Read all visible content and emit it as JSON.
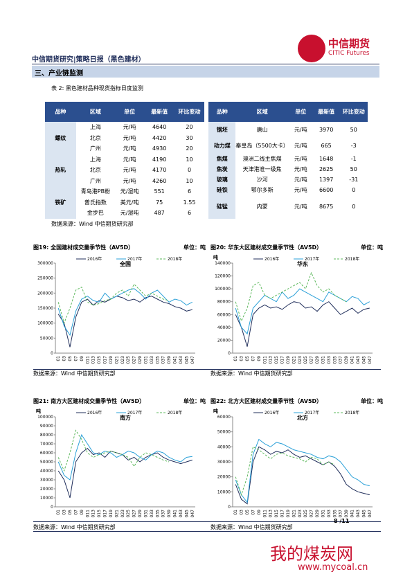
{
  "header": {
    "title": "中信期货研究|策略日报（黑色建材）",
    "logo_cn": "中信期货",
    "logo_en": "CITIC Futures"
  },
  "section": "三、产业链监测",
  "table": {
    "caption": "表 2: 黑色建材品种现货指标日度监测",
    "columns": [
      "品种",
      "区域",
      "单位",
      "最新值",
      "环比变动"
    ],
    "left": [
      {
        "product": "螺纹",
        "rows": [
          [
            "上海",
            "元/吨",
            4640,
            20
          ],
          [
            "北京",
            "元/吨",
            4420,
            30
          ],
          [
            "广州",
            "元/吨",
            4930,
            20
          ]
        ]
      },
      {
        "product": "热轧",
        "rows": [
          [
            "上海",
            "元/吨",
            4190,
            10
          ],
          [
            "北京",
            "元/吨",
            4170,
            0
          ],
          [
            "广州",
            "元/吨",
            4260,
            10
          ]
        ]
      },
      {
        "product": "铁矿",
        "rows": [
          [
            "青岛港PB粉",
            "元/湿吨",
            551,
            6
          ],
          [
            "普氏指数",
            "美元/吨",
            75,
            1.55
          ],
          [
            "金步巴",
            "元/湿吨",
            487,
            6
          ]
        ]
      }
    ],
    "right": [
      [
        "钢坯",
        "唐山",
        "元/吨",
        3970,
        50
      ],
      [
        "动力煤",
        "秦皇岛（5500大卡）",
        "元/吨",
        665,
        -3
      ],
      [
        "焦煤",
        "澳洲二线主焦煤",
        "元/吨",
        1648,
        -1
      ],
      [
        "焦炭",
        "天津港准一级焦",
        "元/吨",
        2625,
        50
      ],
      [
        "玻璃",
        "沙河",
        "元/吨",
        1397,
        -31
      ],
      [
        "硅铁",
        "鄂尔多斯",
        "元/吨",
        6600,
        0
      ],
      [
        "硅锰",
        "内蒙",
        "元/吨",
        8675,
        0
      ]
    ],
    "source": "数据来源：Wind 中信期货研究部"
  },
  "figures": [
    {
      "caption": "图19: 全国建材成交量季节性（AV5D）",
      "unit": "单位：吨",
      "source": "数据来源：Wind 中信期货研究部"
    },
    {
      "caption": "图20: 华东大区建材成交量季节性（AV5D）",
      "unit": "单位：吨",
      "source": "数据来源：Wind 中信期货研究部"
    },
    {
      "caption": "图21: 南方大区建材成交量季节性（AV5D）",
      "unit": "单位：吨",
      "source": "数据来源：Wind 中信期货研究部"
    },
    {
      "caption": "图22: 北方大区建材成交量季节性（AV5D）",
      "unit": "单位：吨",
      "source": "数据来源：Wind 中信期货研究部"
    }
  ],
  "chart_data": [
    {
      "type": "line",
      "title": "全国",
      "categories": [
        "01",
        "03",
        "05",
        "07",
        "09",
        "011",
        "013",
        "015",
        "017",
        "019",
        "021",
        "023",
        "025",
        "027",
        "029",
        "031",
        "033",
        "035",
        "037",
        "039",
        "041",
        "043",
        "045",
        "047"
      ],
      "ylim": [
        0,
        300000
      ],
      "yticks": [
        0,
        50000,
        100000,
        150000,
        200000,
        250000,
        300000
      ],
      "series": [
        {
          "name": "2016年",
          "color": "#1f2d5a",
          "dashed": false,
          "values": [
            130000,
            100000,
            20000,
            120000,
            170000,
            180000,
            160000,
            175000,
            170000,
            180000,
            190000,
            185000,
            175000,
            180000,
            170000,
            185000,
            190000,
            180000,
            170000,
            165000,
            155000,
            150000,
            140000,
            145000
          ]
        },
        {
          "name": "2017年",
          "color": "#2aa0d8",
          "dashed": false,
          "values": [
            150000,
            90000,
            60000,
            140000,
            180000,
            190000,
            175000,
            170000,
            200000,
            180000,
            190000,
            200000,
            210000,
            215000,
            200000,
            180000,
            200000,
            210000,
            190000,
            170000,
            180000,
            175000,
            160000,
            170000
          ]
        },
        {
          "name": "2018年",
          "color": "#5cb85c",
          "dashed": true,
          "values": [
            170000,
            100000,
            150000,
            210000,
            220000,
            170000,
            160000,
            165000,
            175000,
            180000,
            200000,
            210000,
            190000,
            230000,
            210000,
            190000,
            200000,
            190000,
            180000,
            175000,
            null,
            null,
            null,
            null
          ]
        }
      ]
    },
    {
      "type": "line",
      "title": "华东",
      "y_label": "吨",
      "categories": [
        "01",
        "03",
        "05",
        "07",
        "09",
        "011",
        "013",
        "015",
        "017",
        "019",
        "021",
        "023",
        "025",
        "027",
        "029",
        "031",
        "033",
        "035",
        "037",
        "039",
        "041",
        "043",
        "045",
        "047"
      ],
      "ylim": [
        0,
        140000
      ],
      "yticks": [
        0,
        20000,
        40000,
        60000,
        80000,
        100000,
        120000,
        140000
      ],
      "series": [
        {
          "name": "2016年",
          "color": "#1f2d5a",
          "dashed": false,
          "values": [
            60000,
            40000,
            10000,
            60000,
            70000,
            75000,
            70000,
            72000,
            68000,
            75000,
            80000,
            78000,
            70000,
            72000,
            65000,
            75000,
            80000,
            70000,
            60000,
            65000,
            70000,
            62000,
            68000,
            70000
          ]
        },
        {
          "name": "2017年",
          "color": "#2aa0d8",
          "dashed": false,
          "values": [
            70000,
            40000,
            30000,
            70000,
            80000,
            90000,
            85000,
            80000,
            95000,
            85000,
            90000,
            100000,
            95000,
            90000,
            85000,
            80000,
            95000,
            90000,
            85000,
            80000,
            88000,
            85000,
            75000,
            80000
          ]
        },
        {
          "name": "2018年",
          "color": "#5cb85c",
          "dashed": true,
          "values": [
            80000,
            50000,
            70000,
            105000,
            110000,
            90000,
            85000,
            90000,
            95000,
            100000,
            105000,
            110000,
            100000,
            125000,
            105000,
            95000,
            100000,
            90000,
            85000,
            80000,
            null,
            null,
            null,
            null
          ]
        }
      ]
    },
    {
      "type": "line",
      "title": "南方",
      "y_label": "吨",
      "categories": [
        "01",
        "03",
        "05",
        "07",
        "09",
        "011",
        "013",
        "015",
        "017",
        "019",
        "021",
        "023",
        "025",
        "027",
        "029",
        "031",
        "033",
        "035",
        "037",
        "039",
        "041",
        "043",
        "045",
        "047"
      ],
      "ylim": [
        0,
        100000
      ],
      "yticks": [
        0,
        10000,
        20000,
        30000,
        40000,
        50000,
        60000,
        70000,
        80000,
        90000,
        100000
      ],
      "series": [
        {
          "name": "2016年",
          "color": "#1f2d5a",
          "dashed": false,
          "values": [
            40000,
            30000,
            10000,
            50000,
            60000,
            65000,
            58000,
            60000,
            55000,
            62000,
            60000,
            58000,
            52000,
            55000,
            50000,
            55000,
            58000,
            60000,
            55000,
            52000,
            50000,
            48000,
            50000,
            52000
          ]
        },
        {
          "name": "2017年",
          "color": "#2aa0d8",
          "dashed": false,
          "values": [
            50000,
            35000,
            30000,
            60000,
            80000,
            70000,
            60000,
            58000,
            62000,
            60000,
            55000,
            58000,
            62000,
            60000,
            55000,
            52000,
            58000,
            62000,
            60000,
            55000,
            52000,
            50000,
            55000,
            56000
          ]
        },
        {
          "name": "2018年",
          "color": "#5cb85c",
          "dashed": true,
          "values": [
            55000,
            40000,
            60000,
            85000,
            75000,
            60000,
            55000,
            58000,
            60000,
            62000,
            60000,
            58000,
            55000,
            45000,
            55000,
            60000,
            58000,
            55000,
            52000,
            50000,
            null,
            null,
            null,
            null
          ]
        }
      ]
    },
    {
      "type": "line",
      "title": "北方",
      "y_label": "吨",
      "categories": [
        "01",
        "03",
        "05",
        "07",
        "09",
        "011",
        "013",
        "015",
        "017",
        "019",
        "021",
        "023",
        "025",
        "027",
        "029",
        "031",
        "033",
        "035",
        "037",
        "039",
        "041",
        "043",
        "045",
        "047"
      ],
      "ylim": [
        0,
        60000
      ],
      "yticks": [
        0,
        10000,
        20000,
        30000,
        40000,
        50000,
        60000
      ],
      "series": [
        {
          "name": "2016年",
          "color": "#1f2d5a",
          "dashed": false,
          "values": [
            15000,
            5000,
            2000,
            30000,
            40000,
            38000,
            35000,
            37000,
            36000,
            38000,
            35000,
            33000,
            34000,
            32000,
            30000,
            28000,
            30000,
            27000,
            22000,
            15000,
            12000,
            10000,
            9000,
            8000
          ]
        },
        {
          "name": "2017年",
          "color": "#2aa0d8",
          "dashed": false,
          "values": [
            18000,
            8000,
            3000,
            35000,
            45000,
            42000,
            40000,
            43000,
            42000,
            40000,
            38000,
            37000,
            36000,
            35000,
            33000,
            32000,
            34000,
            33000,
            30000,
            25000,
            20000,
            18000,
            15000,
            14000
          ]
        },
        {
          "name": "2018年",
          "color": "#5cb85c",
          "dashed": true,
          "values": [
            20000,
            8000,
            20000,
            40000,
            38000,
            35000,
            32000,
            35000,
            36000,
            34000,
            33000,
            32000,
            30000,
            33000,
            32000,
            28000,
            30000,
            28000,
            null,
            null,
            null,
            null,
            null,
            null
          ]
        }
      ]
    }
  ],
  "footer": {
    "page": "8 /11",
    "watermark": "我的煤炭网",
    "watermark_url": "www.mycoal.cn"
  }
}
